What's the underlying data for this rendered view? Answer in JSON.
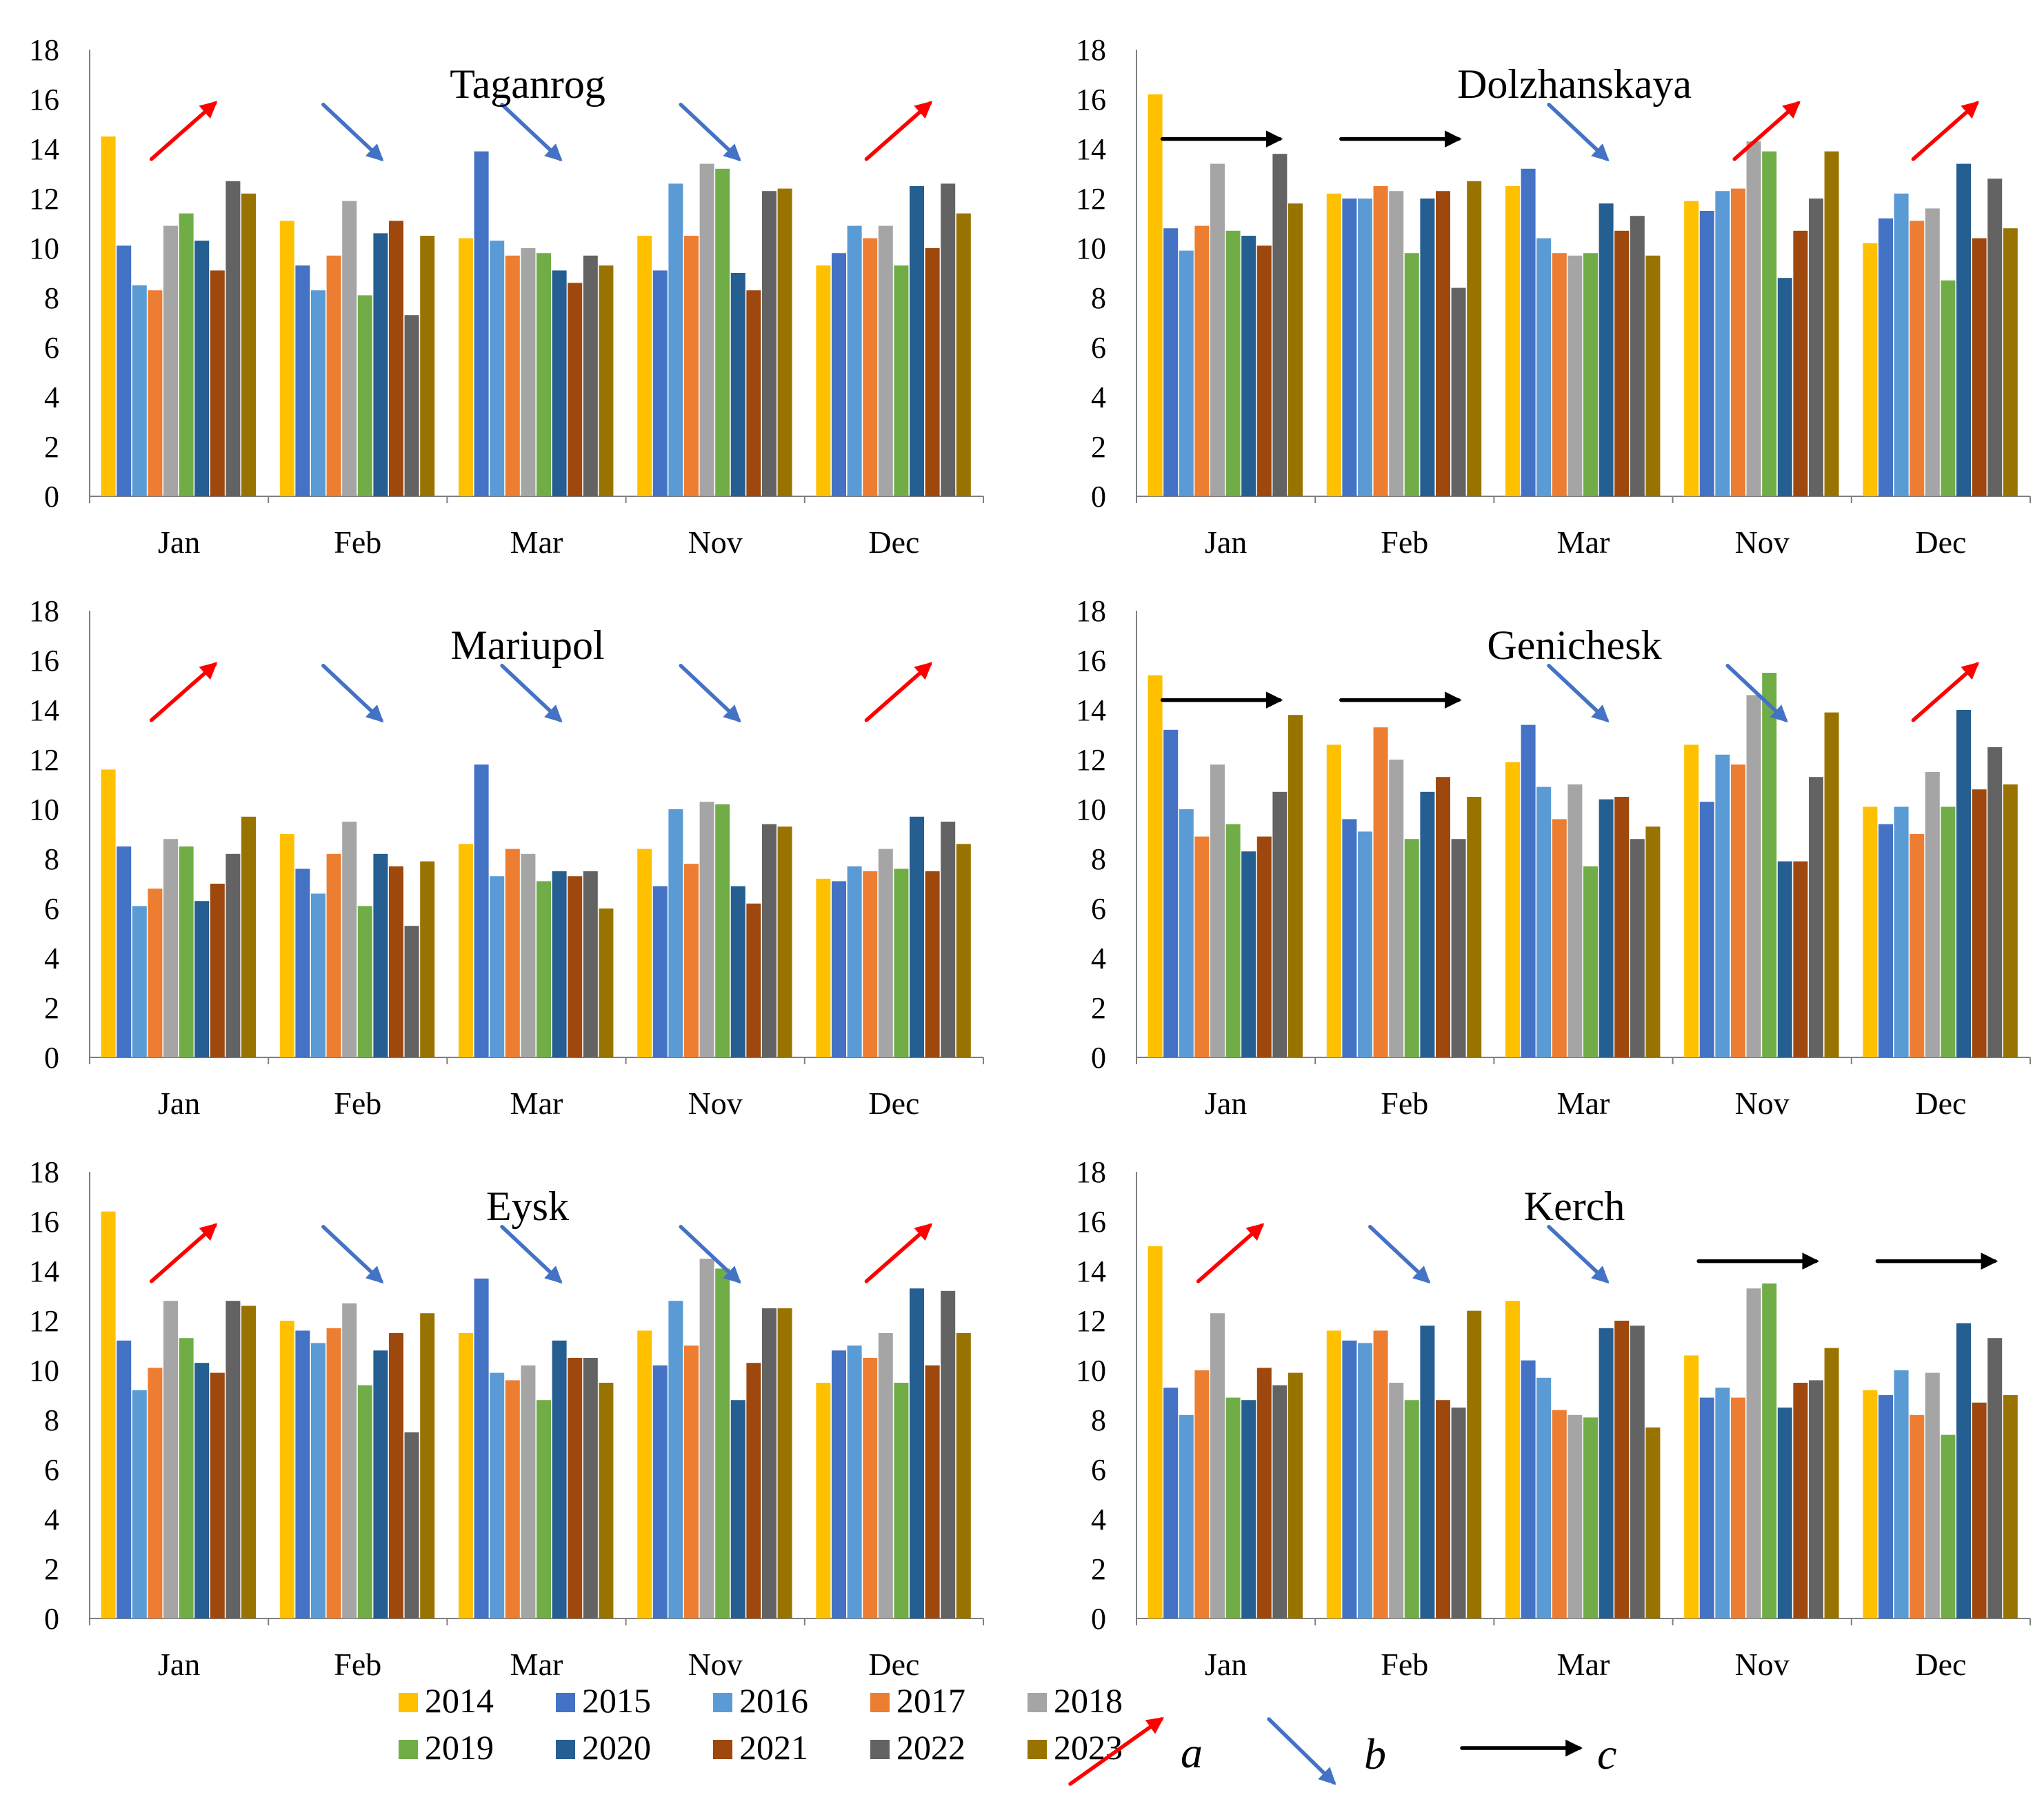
{
  "years": [
    "2014",
    "2015",
    "2016",
    "2017",
    "2018",
    "2019",
    "2020",
    "2021",
    "2022",
    "2023"
  ],
  "colors": [
    "#ffc000",
    "#4472c4",
    "#5b9bd5",
    "#ed7d31",
    "#a5a5a5",
    "#70ad47",
    "#255e91",
    "#9e480e",
    "#636363",
    "#997300"
  ],
  "arrow_colors": {
    "a": "#ff0000",
    "b": "#4472c4",
    "c": "#000000"
  },
  "legend_arrows": [
    {
      "type": "a",
      "icon": "trend-up-arrow-icon",
      "label": "a"
    },
    {
      "type": "b",
      "icon": "trend-down-arrow-icon",
      "label": "b"
    },
    {
      "type": "c",
      "icon": "trend-flat-arrow-icon",
      "label": "c"
    }
  ],
  "chart_data": [
    {
      "type": "bar",
      "title": "Taganrog",
      "categories": [
        "Jan",
        "Feb",
        "Mar",
        "Nov",
        "Dec"
      ],
      "ylim": [
        0,
        18
      ],
      "yticks": [
        0,
        2,
        4,
        6,
        8,
        10,
        12,
        14,
        16,
        18
      ],
      "arrows": [
        "a",
        "b",
        "b",
        "b",
        "a"
      ],
      "series": [
        {
          "name": "2014",
          "values": [
            14.5,
            11.1,
            10.4,
            10.5,
            9.3
          ]
        },
        {
          "name": "2015",
          "values": [
            10.1,
            9.3,
            13.9,
            9.1,
            9.8
          ]
        },
        {
          "name": "2016",
          "values": [
            8.5,
            8.3,
            10.3,
            12.6,
            10.9
          ]
        },
        {
          "name": "2017",
          "values": [
            8.3,
            9.7,
            9.7,
            10.5,
            10.4
          ]
        },
        {
          "name": "2018",
          "values": [
            10.9,
            11.9,
            10.0,
            13.4,
            10.9
          ]
        },
        {
          "name": "2019",
          "values": [
            11.4,
            8.1,
            9.8,
            13.2,
            9.3
          ]
        },
        {
          "name": "2020",
          "values": [
            10.3,
            10.6,
            9.1,
            9.0,
            12.5
          ]
        },
        {
          "name": "2021",
          "values": [
            9.1,
            11.1,
            8.6,
            8.3,
            10.0
          ]
        },
        {
          "name": "2022",
          "values": [
            12.7,
            7.3,
            9.7,
            12.3,
            12.6
          ]
        },
        {
          "name": "2023",
          "values": [
            12.2,
            10.5,
            9.3,
            12.4,
            11.4
          ]
        }
      ]
    },
    {
      "type": "bar",
      "title": "Dolzhanskaya",
      "categories": [
        "Jan",
        "Feb",
        "Mar",
        "Nov",
        "Dec"
      ],
      "ylim": [
        0,
        18
      ],
      "yticks": [
        0,
        2,
        4,
        6,
        8,
        10,
        12,
        14,
        16,
        18
      ],
      "arrows": [
        "c",
        "c",
        "b",
        "a",
        "a"
      ],
      "series": [
        {
          "name": "2014",
          "values": [
            16.2,
            12.2,
            12.5,
            11.9,
            10.2
          ]
        },
        {
          "name": "2015",
          "values": [
            10.8,
            12.0,
            13.2,
            11.5,
            11.2
          ]
        },
        {
          "name": "2016",
          "values": [
            9.9,
            12.0,
            10.4,
            12.3,
            12.2
          ]
        },
        {
          "name": "2017",
          "values": [
            10.9,
            12.5,
            9.8,
            12.4,
            11.1
          ]
        },
        {
          "name": "2018",
          "values": [
            13.4,
            12.3,
            9.7,
            14.3,
            11.6
          ]
        },
        {
          "name": "2019",
          "values": [
            10.7,
            9.8,
            9.8,
            13.9,
            8.7
          ]
        },
        {
          "name": "2020",
          "values": [
            10.5,
            12.0,
            11.8,
            8.8,
            13.4
          ]
        },
        {
          "name": "2021",
          "values": [
            10.1,
            12.3,
            10.7,
            10.7,
            10.4
          ]
        },
        {
          "name": "2022",
          "values": [
            13.8,
            8.4,
            11.3,
            12.0,
            12.8
          ]
        },
        {
          "name": "2023",
          "values": [
            11.8,
            12.7,
            9.7,
            13.9,
            10.8
          ]
        }
      ]
    },
    {
      "type": "bar",
      "title": "Mariupol",
      "categories": [
        "Jan",
        "Feb",
        "Mar",
        "Nov",
        "Dec"
      ],
      "ylim": [
        0,
        18
      ],
      "yticks": [
        0,
        2,
        4,
        6,
        8,
        10,
        12,
        14,
        16,
        18
      ],
      "arrows": [
        "a",
        "b",
        "b",
        "b",
        "a"
      ],
      "series": [
        {
          "name": "2014",
          "values": [
            11.6,
            9.0,
            8.6,
            8.4,
            7.2
          ]
        },
        {
          "name": "2015",
          "values": [
            8.5,
            7.6,
            11.8,
            6.9,
            7.1
          ]
        },
        {
          "name": "2016",
          "values": [
            6.1,
            6.6,
            7.3,
            10.0,
            7.7
          ]
        },
        {
          "name": "2017",
          "values": [
            6.8,
            8.2,
            8.4,
            7.8,
            7.5
          ]
        },
        {
          "name": "2018",
          "values": [
            8.8,
            9.5,
            8.2,
            10.3,
            8.4
          ]
        },
        {
          "name": "2019",
          "values": [
            8.5,
            6.1,
            7.1,
            10.2,
            7.6
          ]
        },
        {
          "name": "2020",
          "values": [
            6.3,
            8.2,
            7.5,
            6.9,
            9.7
          ]
        },
        {
          "name": "2021",
          "values": [
            7.0,
            7.7,
            7.3,
            6.2,
            7.5
          ]
        },
        {
          "name": "2022",
          "values": [
            8.2,
            5.3,
            7.5,
            9.4,
            9.5
          ]
        },
        {
          "name": "2023",
          "values": [
            9.7,
            7.9,
            6.0,
            9.3,
            8.6
          ]
        }
      ]
    },
    {
      "type": "bar",
      "title": "Genichesk",
      "categories": [
        "Jan",
        "Feb",
        "Mar",
        "Nov",
        "Dec"
      ],
      "ylim": [
        0,
        18
      ],
      "yticks": [
        0,
        2,
        4,
        6,
        8,
        10,
        12,
        14,
        16,
        18
      ],
      "arrows": [
        "c",
        "c",
        "b",
        "b",
        "a"
      ],
      "series": [
        {
          "name": "2014",
          "values": [
            15.4,
            12.6,
            11.9,
            12.6,
            10.1
          ]
        },
        {
          "name": "2015",
          "values": [
            13.2,
            9.6,
            13.4,
            10.3,
            9.4
          ]
        },
        {
          "name": "2016",
          "values": [
            10.0,
            9.1,
            10.9,
            12.2,
            10.1
          ]
        },
        {
          "name": "2017",
          "values": [
            8.9,
            13.3,
            9.6,
            11.8,
            9.0
          ]
        },
        {
          "name": "2018",
          "values": [
            11.8,
            12.0,
            11.0,
            14.6,
            11.5
          ]
        },
        {
          "name": "2019",
          "values": [
            9.4,
            8.8,
            7.7,
            15.5,
            10.1
          ]
        },
        {
          "name": "2020",
          "values": [
            8.3,
            10.7,
            10.4,
            7.9,
            14.0
          ]
        },
        {
          "name": "2021",
          "values": [
            8.9,
            11.3,
            10.5,
            7.9,
            10.8
          ]
        },
        {
          "name": "2022",
          "values": [
            10.7,
            8.8,
            8.8,
            11.3,
            12.5
          ]
        },
        {
          "name": "2023",
          "values": [
            13.8,
            10.5,
            9.3,
            13.9,
            11.0
          ]
        }
      ]
    },
    {
      "type": "bar",
      "title": "Eysk",
      "categories": [
        "Jan",
        "Feb",
        "Mar",
        "Nov",
        "Dec"
      ],
      "ylim": [
        0,
        18
      ],
      "yticks": [
        0,
        2,
        4,
        6,
        8,
        10,
        12,
        14,
        16,
        18
      ],
      "arrows": [
        "a",
        "b",
        "b",
        "b",
        "a"
      ],
      "series": [
        {
          "name": "2014",
          "values": [
            16.4,
            12.0,
            11.5,
            11.6,
            9.5
          ]
        },
        {
          "name": "2015",
          "values": [
            11.2,
            11.6,
            13.7,
            10.2,
            10.8
          ]
        },
        {
          "name": "2016",
          "values": [
            9.2,
            11.1,
            9.9,
            12.8,
            11.0
          ]
        },
        {
          "name": "2017",
          "values": [
            10.1,
            11.7,
            9.6,
            11.0,
            10.5
          ]
        },
        {
          "name": "2018",
          "values": [
            12.8,
            12.7,
            10.2,
            14.5,
            11.5
          ]
        },
        {
          "name": "2019",
          "values": [
            11.3,
            9.4,
            8.8,
            14.1,
            9.5
          ]
        },
        {
          "name": "2020",
          "values": [
            10.3,
            10.8,
            11.2,
            8.8,
            13.3
          ]
        },
        {
          "name": "2021",
          "values": [
            9.9,
            11.5,
            10.5,
            10.3,
            10.2
          ]
        },
        {
          "name": "2022",
          "values": [
            12.8,
            7.5,
            10.5,
            12.5,
            13.2
          ]
        },
        {
          "name": "2023",
          "values": [
            12.6,
            12.3,
            9.5,
            12.5,
            11.5
          ]
        }
      ]
    },
    {
      "type": "bar",
      "title": "Kerch",
      "categories": [
        "Jan",
        "Feb",
        "Mar",
        "Nov",
        "Dec"
      ],
      "ylim": [
        0,
        18
      ],
      "yticks": [
        0,
        2,
        4,
        6,
        8,
        10,
        12,
        14,
        16,
        18
      ],
      "arrows": [
        "a",
        "b",
        "b",
        "c",
        "c"
      ],
      "series": [
        {
          "name": "2014",
          "values": [
            15.0,
            11.6,
            12.8,
            10.6,
            9.2
          ]
        },
        {
          "name": "2015",
          "values": [
            9.3,
            11.2,
            10.4,
            8.9,
            9.0
          ]
        },
        {
          "name": "2016",
          "values": [
            8.2,
            11.1,
            9.7,
            9.3,
            10.0
          ]
        },
        {
          "name": "2017",
          "values": [
            10.0,
            11.6,
            8.4,
            8.9,
            8.2
          ]
        },
        {
          "name": "2018",
          "values": [
            12.3,
            9.5,
            8.2,
            13.3,
            9.9
          ]
        },
        {
          "name": "2019",
          "values": [
            8.9,
            8.8,
            8.1,
            13.5,
            7.4
          ]
        },
        {
          "name": "2020",
          "values": [
            8.8,
            11.8,
            11.7,
            8.5,
            11.9
          ]
        },
        {
          "name": "2021",
          "values": [
            10.1,
            8.8,
            12.0,
            9.5,
            8.7
          ]
        },
        {
          "name": "2022",
          "values": [
            9.4,
            8.5,
            11.8,
            9.6,
            11.3
          ]
        },
        {
          "name": "2023",
          "values": [
            9.9,
            12.4,
            7.7,
            10.9,
            9.0
          ]
        }
      ]
    }
  ]
}
